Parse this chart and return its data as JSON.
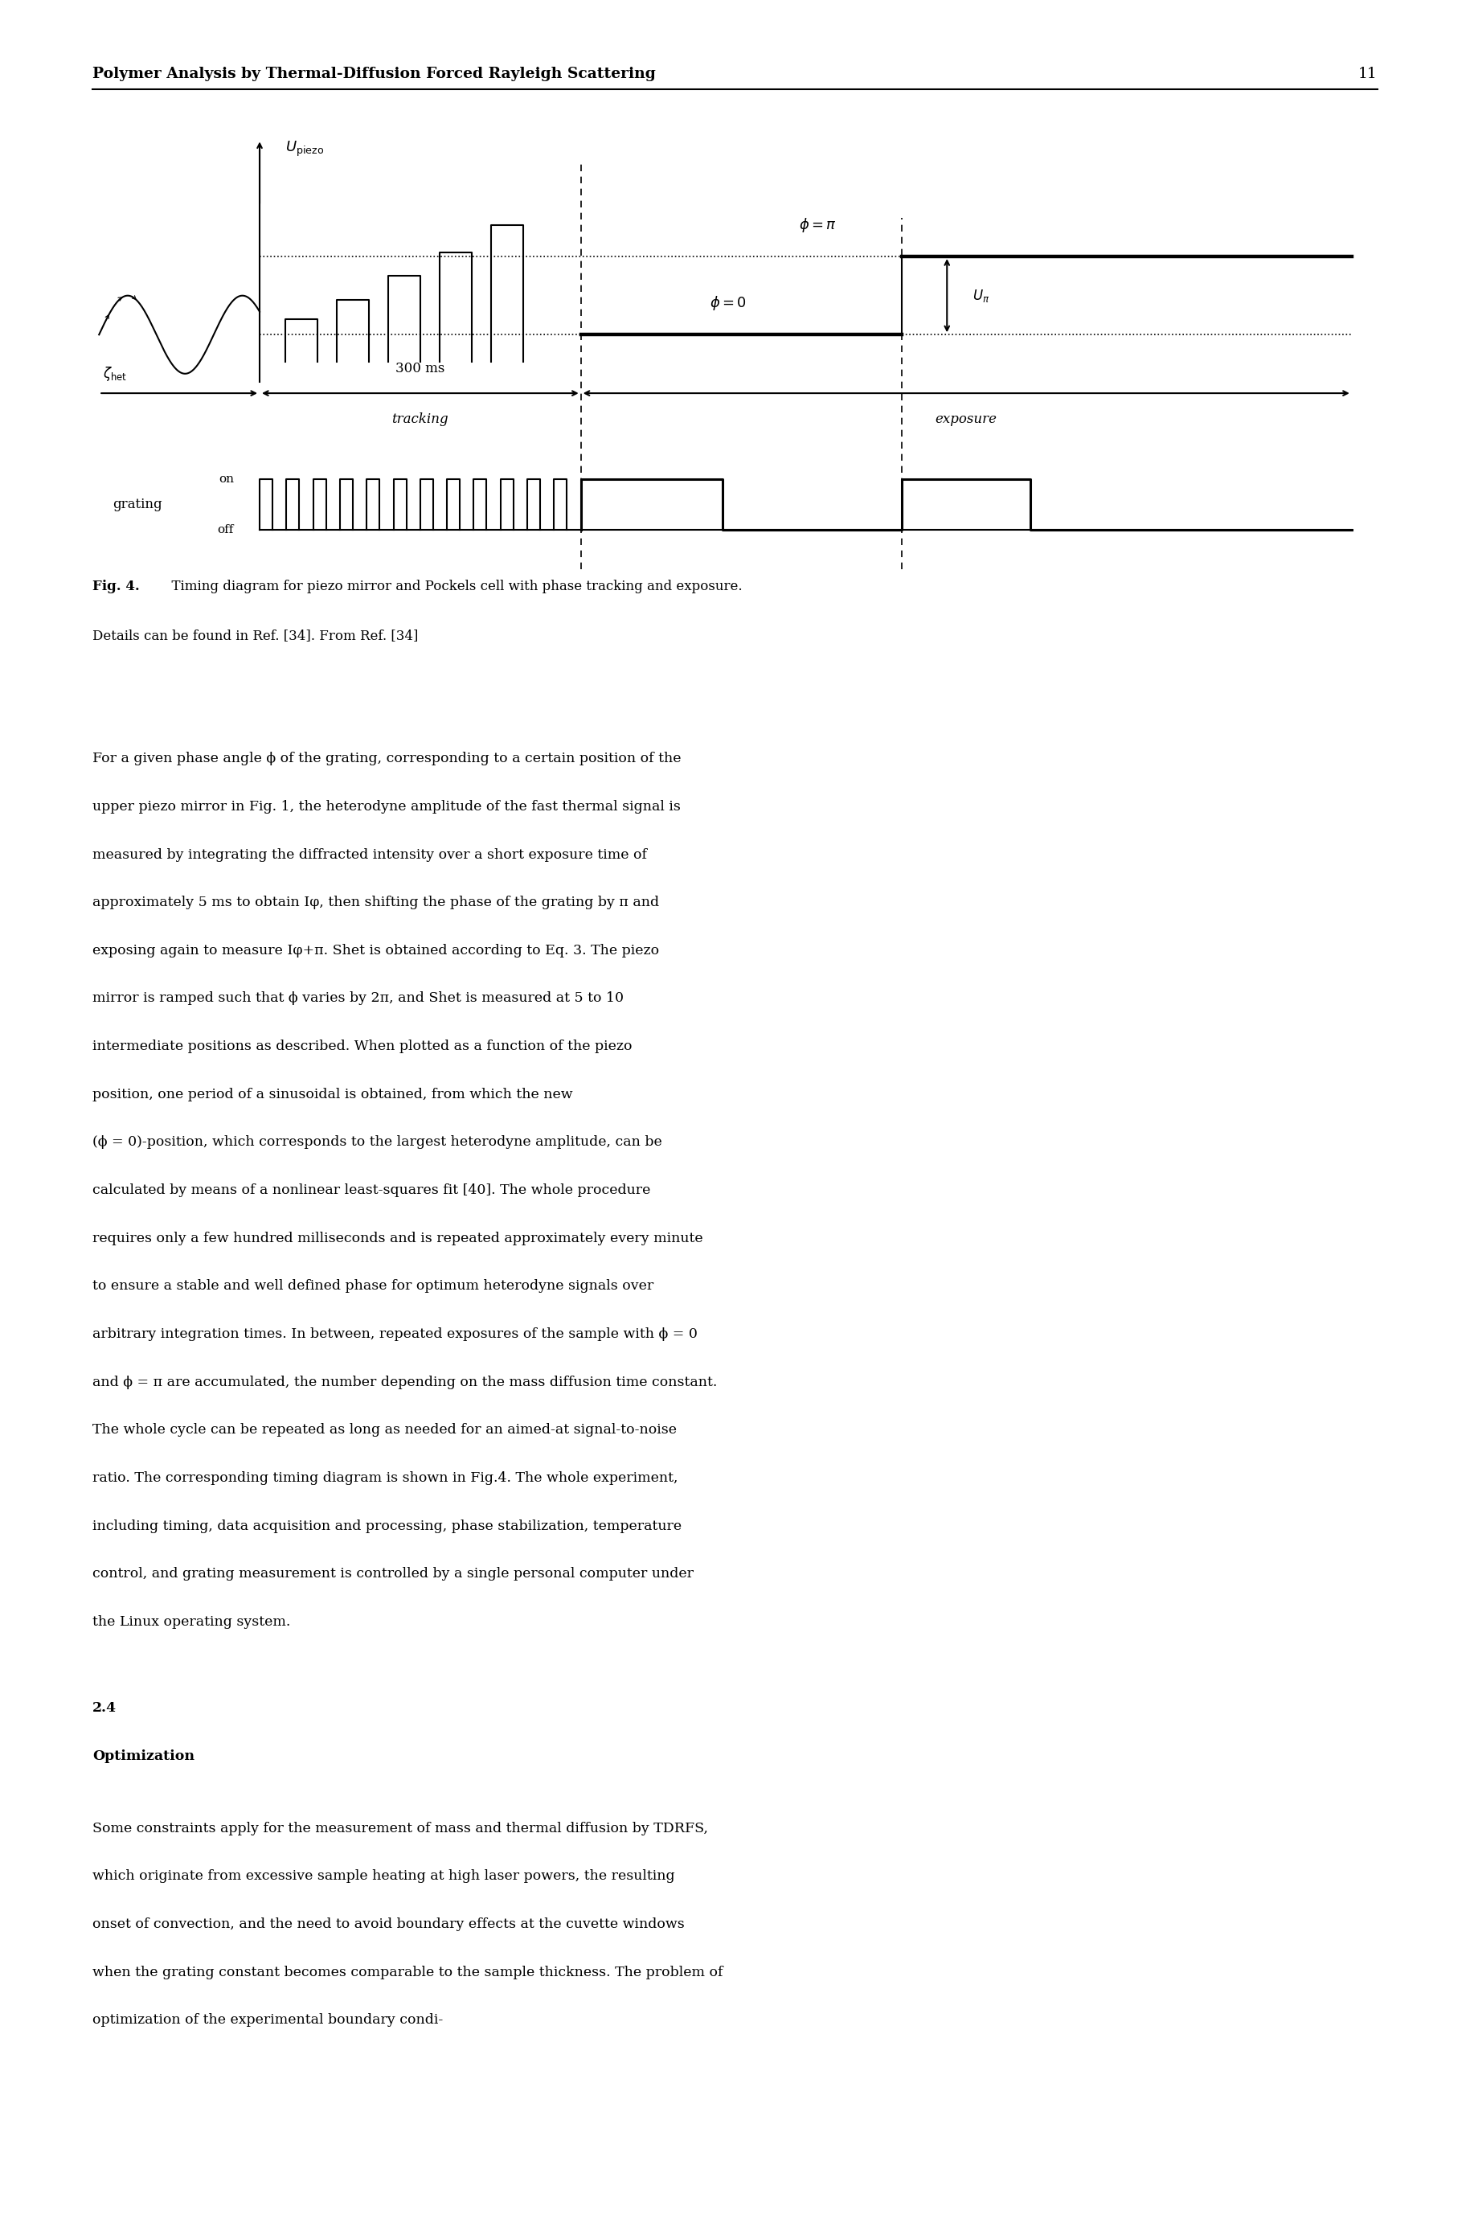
{
  "page_title": "Polymer Analysis by Thermal-Diffusion Forced Rayleigh Scattering",
  "page_number": "11",
  "body1": "For a given phase angle ϕ of the grating, corresponding to a certain position of the upper piezo mirror in Fig. 1, the heterodyne amplitude of the fast thermal signal is measured by integrating the diffracted intensity over a short exposure time of approximately 5 ms to obtain Iφ, then shifting the phase of the grating by π and exposing again to measure Iφ+π. Shet is obtained according to Eq. 3. The piezo mirror is ramped such that ϕ varies by 2π, and Shet is measured at 5 to 10 intermediate positions as described. When plotted as a function of the piezo position, one period of a sinusoidal is obtained, from which the new (ϕ = 0)-position, which corresponds to the largest heterodyne amplitude, can be calculated by means of a nonlinear least-squares fit [40]. The whole procedure requires only a few hundred milliseconds and is repeated approximately every minute to ensure a stable and well defined phase for optimum heterodyne signals over arbitrary integration times. In between, repeated exposures of the sample with ϕ = 0 and ϕ = π are accumulated, the number depending on the mass diffusion time constant. The whole cycle can be repeated as long as needed for an aimed-at signal-to-noise ratio. The corresponding timing diagram is shown in Fig.4. The whole experiment, including timing, data acquisition and processing, phase stabilization, temperature control, and grating measurement is controlled by a single personal computer under the Linux operating system.",
  "section_num": "2.4",
  "section_title": "Optimization",
  "body2": "Some constraints apply for the measurement of mass and thermal diffusion by TDRFS, which originate from excessive sample heating at high laser powers, the resulting onset of convection, and the need to avoid boundary effects at the cuvette windows when the grating constant becomes comparable to the sample thickness. The problem of optimization of the experimental boundary condi-",
  "cap_bold": "Fig. 4.",
  "cap_text": "  Timing diagram for piezo mirror and Pockels cell with phase tracking and exposure.",
  "cap_text2": "Details can be found in Ref. [34]. From Ref. [34]"
}
